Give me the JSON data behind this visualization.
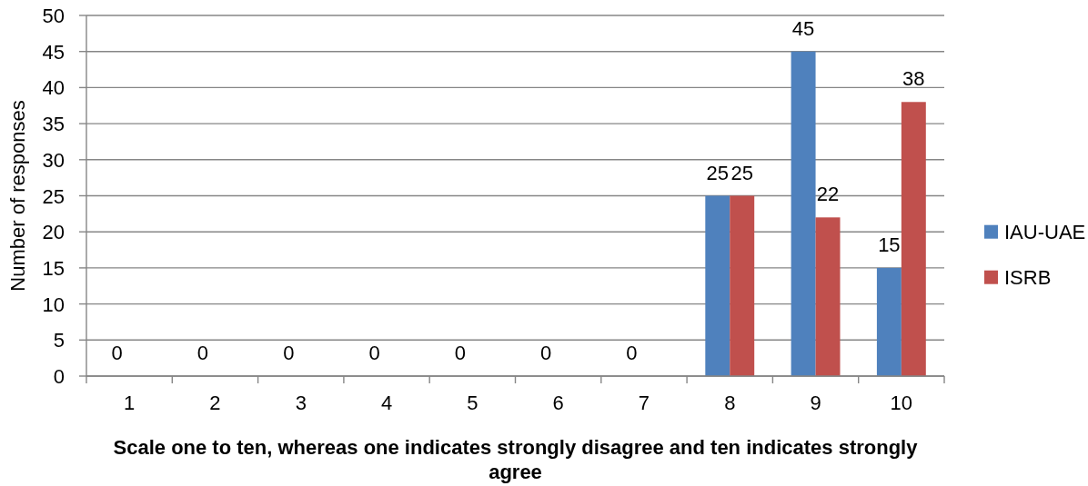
{
  "chart_data": {
    "type": "bar",
    "xlabel": "Scale one to ten, whereas one indicates strongly disagree and ten indicates strongly agree",
    "ylabel": "Number of responses",
    "categories": [
      "1",
      "2",
      "3",
      "4",
      "5",
      "6",
      "7",
      "8",
      "9",
      "10"
    ],
    "series": [
      {
        "name": "IAU-UAE",
        "color": "#4f81bd",
        "values": [
          0,
          0,
          0,
          0,
          0,
          0,
          0,
          25,
          45,
          15
        ]
      },
      {
        "name": "ISRB",
        "color": "#c0504d",
        "values": [
          null,
          null,
          null,
          null,
          null,
          null,
          null,
          25,
          22,
          38
        ]
      }
    ],
    "ylim": [
      0,
      50
    ],
    "yticks": [
      0,
      5,
      10,
      15,
      20,
      25,
      30,
      35,
      40,
      45,
      50
    ],
    "grid": "y",
    "legend": "right",
    "data_labels": true
  }
}
